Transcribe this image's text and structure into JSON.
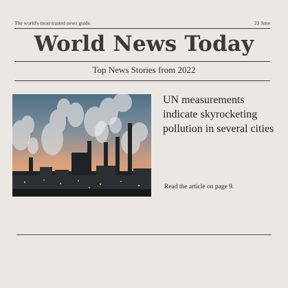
{
  "topline": {
    "tagline": "The world's most trusted news guide.",
    "date": "23 June"
  },
  "masthead": {
    "title": "World News Today"
  },
  "section": {
    "subtitle": "Top News Stories from 2022"
  },
  "article": {
    "headline": "UN measurements indicate skyrocketing pollution in several cities",
    "read_more": "Read the article on page 9."
  }
}
